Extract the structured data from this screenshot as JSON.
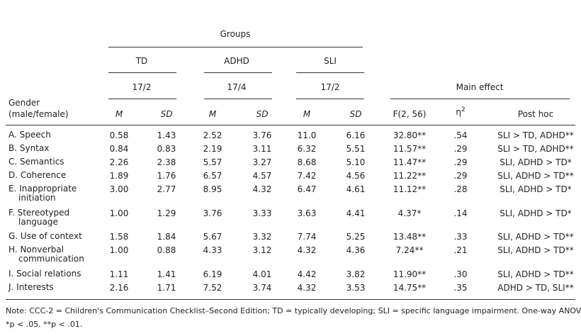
{
  "header": {
    "groups_label": "Groups",
    "group_names": [
      "TD",
      "ADHD",
      "SLI"
    ],
    "group_ratios": [
      "17/2",
      "17/4",
      "17/2"
    ],
    "main_effect_label": "Main effect",
    "gender_label_line1": "Gender",
    "gender_label_line2": "(male/female)",
    "col_m": "M",
    "col_sd": "SD",
    "col_f": "F(2, 56)",
    "col_eta": "η",
    "col_eta_sup": "2",
    "col_posthoc": "Post hoc"
  },
  "rows": [
    {
      "label": [
        "A. Speech"
      ],
      "td_m": "0.58",
      "td_sd": "1.43",
      "adhd_m": "2.52",
      "adhd_sd": "3.76",
      "sli_m": "11.0",
      "sli_sd": "6.16",
      "f": "32.80**",
      "eta": ".54",
      "posthoc": "SLI > TD, ADHD**"
    },
    {
      "label": [
        "B. Syntax"
      ],
      "td_m": "0.84",
      "td_sd": "0.83",
      "adhd_m": "2.19",
      "adhd_sd": "3.11",
      "sli_m": "6.32",
      "sli_sd": "5.51",
      "f": "11.57**",
      "eta": ".29",
      "posthoc": "SLI > TD, ADHD**"
    },
    {
      "label": [
        "C. Semantics"
      ],
      "td_m": "2.26",
      "td_sd": "2.38",
      "adhd_m": "5.57",
      "adhd_sd": "3.27",
      "sli_m": "8.68",
      "sli_sd": "5.10",
      "f": "11.47**",
      "eta": ".29",
      "posthoc": "SLI, ADHD > TD*"
    },
    {
      "label": [
        "D. Coherence"
      ],
      "td_m": "1.89",
      "td_sd": "1.76",
      "adhd_m": "6.57",
      "adhd_sd": "4.57",
      "sli_m": "7.42",
      "sli_sd": "4.56",
      "f": "11.22**",
      "eta": ".29",
      "posthoc": "SLI, ADHD > TD**"
    },
    {
      "label": [
        "E. Inappropriate",
        "initiation"
      ],
      "td_m": "3.00",
      "td_sd": "2.77",
      "adhd_m": "8.95",
      "adhd_sd": "4.32",
      "sli_m": "6.47",
      "sli_sd": "4.61",
      "f": "11.12**",
      "eta": ".28",
      "posthoc": "SLI, ADHD > TD*"
    },
    {
      "label": [
        "F. Stereotyped",
        "language"
      ],
      "td_m": "1.00",
      "td_sd": "1.29",
      "adhd_m": "3.76",
      "adhd_sd": "3.33",
      "sli_m": "3.63",
      "sli_sd": "4.41",
      "f": "4.37*",
      "eta": ".14",
      "posthoc": "SLI, ADHD > TD*"
    },
    {
      "label": [
        "G. Use of context"
      ],
      "td_m": "1.58",
      "td_sd": "1.84",
      "adhd_m": "5.67",
      "adhd_sd": "3.32",
      "sli_m": "7.74",
      "sli_sd": "5.25",
      "f": "13.48**",
      "eta": ".33",
      "posthoc": "SLI, ADHD > TD**"
    },
    {
      "label": [
        "H. Nonverbal",
        "communication"
      ],
      "td_m": "1.00",
      "td_sd": "0.88",
      "adhd_m": "4.33",
      "adhd_sd": "3.12",
      "sli_m": "4.32",
      "sli_sd": "4.36",
      "f": "7.24**",
      "eta": ".21",
      "posthoc": "SLI, ADHD > TD**"
    },
    {
      "label": [
        "I. Social relations"
      ],
      "td_m": "1.11",
      "td_sd": "1.41",
      "adhd_m": "6.19",
      "adhd_sd": "4.01",
      "sli_m": "4.42",
      "sli_sd": "3.82",
      "f": "11.90**",
      "eta": ".30",
      "posthoc": "SLI, ADHD > TD**"
    },
    {
      "label": [
        "J. Interests"
      ],
      "td_m": "2.16",
      "td_sd": "1.71",
      "adhd_m": "7.52",
      "adhd_sd": "3.74",
      "sli_m": "4.32",
      "sli_sd": "3.53",
      "f": "14.75**",
      "eta": ".35",
      "posthoc": "ADHD > TD, SLI**"
    }
  ],
  "note": {
    "line1": "Note: CCC-2 = Children's Communication Checklist–Second Edition; TD = typically developing; SLI = specific language impairment. One-way ANOVA.",
    "line2": "*p < .05. **p < .01."
  }
}
